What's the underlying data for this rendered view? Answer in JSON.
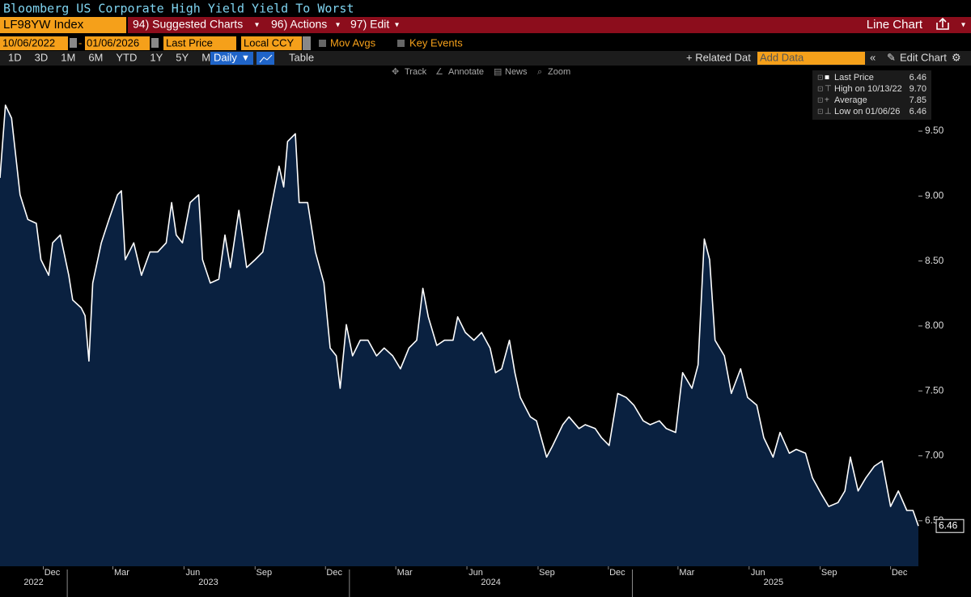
{
  "ui": {
    "title": "Bloomberg US Corporate High Yield Yield To Worst",
    "ticker": "LF98YW Index",
    "menu": [
      "94) Suggested Charts",
      "96) Actions",
      "97) Edit"
    ],
    "view": "Line Chart",
    "start_date": "10/06/2022",
    "end_date": "01/06/2026",
    "field": "Last Price",
    "currency": "Local CCY",
    "toggles": [
      "Mov Avgs",
      "Key Events"
    ],
    "periods": [
      "1D",
      "3D",
      "1M",
      "6M",
      "YTD",
      "1Y",
      "5Y",
      "Max"
    ],
    "frequency": "Daily",
    "table": "Table",
    "related": "+ Related Dat",
    "add_data": "Add Data",
    "edit_chart": "Edit Chart",
    "tools": [
      "Track",
      "Annotate",
      "News",
      "Zoom"
    ]
  },
  "chart_data": {
    "type": "area",
    "series": [
      {
        "name": "Last Price",
        "color": "#ffffff",
        "fill": "#0a2140",
        "x": [
          "2022-10-06",
          "2022-10-13",
          "2022-10-21",
          "2022-11-01",
          "2022-11-11",
          "2022-11-22",
          "2022-11-28",
          "2022-12-08",
          "2022-12-13",
          "2022-12-23",
          "2023-01-03",
          "2023-01-08",
          "2023-01-19",
          "2023-01-24",
          "2023-01-29",
          "2023-02-03",
          "2023-02-14",
          "2023-02-24",
          "2023-03-07",
          "2023-03-12",
          "2023-03-17",
          "2023-03-28",
          "2023-04-07",
          "2023-04-18",
          "2023-04-28",
          "2023-05-09",
          "2023-05-16",
          "2023-05-22",
          "2023-05-30",
          "2023-06-09",
          "2023-06-20",
          "2023-06-25",
          "2023-07-05",
          "2023-07-16",
          "2023-07-24",
          "2023-07-31",
          "2023-08-11",
          "2023-08-21",
          "2023-09-01",
          "2023-09-11",
          "2023-09-22",
          "2023-10-02",
          "2023-10-08",
          "2023-10-13",
          "2023-10-23",
          "2023-10-28",
          "2023-11-08",
          "2023-11-18",
          "2023-11-29",
          "2023-12-07",
          "2023-12-15",
          "2023-12-20",
          "2023-12-28",
          "2024-01-05",
          "2024-01-15",
          "2024-01-25",
          "2024-02-05",
          "2024-02-15",
          "2024-02-26",
          "2024-03-07",
          "2024-03-18",
          "2024-03-28",
          "2024-04-05",
          "2024-04-12",
          "2024-04-23",
          "2024-05-03",
          "2024-05-14",
          "2024-05-20",
          "2024-05-30",
          "2024-06-10",
          "2024-06-20",
          "2024-07-01",
          "2024-07-08",
          "2024-07-16",
          "2024-07-26",
          "2024-08-02",
          "2024-08-09",
          "2024-08-22",
          "2024-08-30",
          "2024-09-12",
          "2024-09-20",
          "2024-10-03",
          "2024-10-11",
          "2024-10-24",
          "2024-11-01",
          "2024-11-14",
          "2024-11-22",
          "2024-12-02",
          "2024-12-13",
          "2024-12-24",
          "2025-01-03",
          "2025-01-15",
          "2025-01-24",
          "2025-02-05",
          "2025-02-14",
          "2025-02-26",
          "2025-03-07",
          "2025-03-19",
          "2025-03-27",
          "2025-04-04",
          "2025-04-11",
          "2025-04-18",
          "2025-04-30",
          "2025-05-09",
          "2025-05-21",
          "2025-05-30",
          "2025-06-11",
          "2025-06-20",
          "2025-07-02",
          "2025-07-11",
          "2025-07-23",
          "2025-08-01",
          "2025-08-13",
          "2025-08-22",
          "2025-09-03",
          "2025-09-12",
          "2025-09-24",
          "2025-10-03",
          "2025-10-10",
          "2025-10-20",
          "2025-10-30",
          "2025-11-10",
          "2025-11-20",
          "2025-12-01",
          "2025-12-11",
          "2025-12-22",
          "2025-12-30",
          "2026-01-06"
        ],
        "values": [
          9.14,
          9.7,
          9.6,
          9.01,
          8.82,
          8.79,
          8.51,
          8.39,
          8.64,
          8.7,
          8.39,
          8.2,
          8.14,
          8.08,
          7.73,
          8.33,
          8.64,
          8.82,
          9.01,
          9.04,
          8.51,
          8.64,
          8.39,
          8.57,
          8.57,
          8.64,
          8.95,
          8.7,
          8.64,
          8.95,
          9.01,
          8.51,
          8.33,
          8.36,
          8.7,
          8.45,
          8.89,
          8.45,
          8.51,
          8.57,
          8.92,
          9.23,
          9.07,
          9.42,
          9.48,
          8.95,
          8.95,
          8.57,
          8.33,
          7.83,
          7.77,
          7.52,
          8.01,
          7.77,
          7.89,
          7.89,
          7.77,
          7.83,
          7.77,
          7.67,
          7.83,
          7.89,
          8.29,
          8.07,
          7.85,
          7.89,
          7.89,
          8.07,
          7.95,
          7.89,
          7.95,
          7.83,
          7.64,
          7.67,
          7.89,
          7.64,
          7.45,
          7.3,
          7.27,
          6.99,
          7.08,
          7.24,
          7.3,
          7.21,
          7.24,
          7.21,
          7.14,
          7.08,
          7.48,
          7.45,
          7.39,
          7.27,
          7.24,
          7.27,
          7.21,
          7.18,
          7.64,
          7.52,
          7.7,
          8.67,
          8.51,
          7.89,
          7.77,
          7.48,
          7.67,
          7.45,
          7.39,
          7.14,
          6.99,
          7.18,
          7.02,
          7.05,
          7.02,
          6.83,
          6.7,
          6.61,
          6.64,
          6.73,
          6.99,
          6.73,
          6.83,
          6.92,
          6.96,
          6.61,
          6.73,
          6.58,
          6.58,
          6.46
        ]
      }
    ],
    "stats": [
      {
        "label": "Last Price",
        "value": "6.46"
      },
      {
        "label": "High on 10/13/22",
        "value": "9.70"
      },
      {
        "label": "Average",
        "value": "7.85"
      },
      {
        "label": "Low on 01/06/26",
        "value": "6.46"
      }
    ],
    "xlim": [
      "2022-10-06",
      "2026-01-06"
    ],
    "xticks": [
      {
        "value": "2022-12-01",
        "label": "Dec"
      },
      {
        "value": "2023-03-01",
        "label": "Mar"
      },
      {
        "value": "2023-06-01",
        "label": "Jun"
      },
      {
        "value": "2023-09-01",
        "label": "Sep"
      },
      {
        "value": "2023-12-01",
        "label": "Dec"
      },
      {
        "value": "2024-03-01",
        "label": "Mar"
      },
      {
        "value": "2024-06-01",
        "label": "Jun"
      },
      {
        "value": "2024-09-01",
        "label": "Sep"
      },
      {
        "value": "2024-12-01",
        "label": "Dec"
      },
      {
        "value": "2025-03-01",
        "label": "Mar"
      },
      {
        "value": "2025-06-01",
        "label": "Jun"
      },
      {
        "value": "2025-09-01",
        "label": "Sep"
      },
      {
        "value": "2025-12-01",
        "label": "Dec"
      }
    ],
    "years": [
      "2022",
      "2023",
      "2024",
      "2025"
    ],
    "ylim": [
      6.15,
      9.98
    ],
    "yticks": [
      {
        "value": 6.5,
        "label": "6.50"
      },
      {
        "value": 7,
        "label": "7.00"
      },
      {
        "value": 7.5,
        "label": "7.50"
      },
      {
        "value": 8,
        "label": "8.00"
      },
      {
        "value": 8.5,
        "label": "8.50"
      },
      {
        "value": 9,
        "label": "9.00"
      },
      {
        "value": 9.5,
        "label": "9.50"
      }
    ]
  }
}
